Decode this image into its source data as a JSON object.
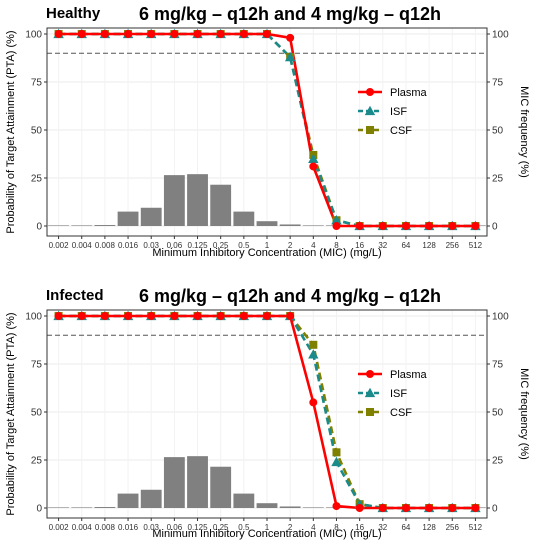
{
  "chart_data": [
    {
      "type": "line",
      "panel_label": "Healthy",
      "title": "6 mg/kg – q12h and 4 mg/kg – q12h",
      "xlabel": "Minimum Inhibitory Concentration (MIC) (mg/L)",
      "ylabel": "Probability of Target Attainment (PTA) (%)",
      "y2label": "MIC frequency (%)",
      "categories": [
        "0.002",
        "0.004",
        "0.008",
        "0.016",
        "0.03",
        "0.06",
        "0.125",
        "0.25",
        "0.5",
        "1",
        "2",
        "4",
        "8",
        "16",
        "32",
        "64",
        "128",
        "256",
        "512"
      ],
      "ylim": [
        0,
        100
      ],
      "yticks": [
        "0",
        "25",
        "50",
        "75",
        "100"
      ],
      "target_line": 90,
      "legend_position": "right",
      "grid": true,
      "bars": {
        "name": "MIC frequency",
        "color": "#808080",
        "values": [
          0.2,
          0.3,
          0.5,
          7.5,
          9.5,
          26.5,
          27,
          21.5,
          7.5,
          2.5,
          0.8,
          0.2,
          0.1,
          0,
          0,
          0,
          0,
          0,
          0
        ]
      },
      "series": [
        {
          "name": "Plasma",
          "color": "#ff0000",
          "marker": "circle",
          "dash": "solid",
          "values": [
            100,
            100,
            100,
            100,
            100,
            100,
            100,
            100,
            100,
            100,
            98,
            31,
            0,
            0,
            0,
            0,
            0,
            0,
            0
          ]
        },
        {
          "name": "ISF",
          "color": "#1a8a8a",
          "marker": "triangle",
          "dash": "dashed",
          "values": [
            100,
            100,
            100,
            100,
            100,
            100,
            100,
            100,
            100,
            100,
            88,
            35,
            3,
            0,
            0,
            0,
            0,
            0,
            0
          ]
        },
        {
          "name": "CSF",
          "color": "#808000",
          "marker": "square",
          "dash": "dashed",
          "values": [
            100,
            100,
            100,
            100,
            100,
            100,
            100,
            100,
            100,
            100,
            88,
            37,
            3,
            0,
            0,
            0,
            0,
            0,
            0
          ]
        }
      ]
    },
    {
      "type": "line",
      "panel_label": "Infected",
      "title": "6 mg/kg – q12h and 4 mg/kg – q12h",
      "xlabel": "Minimum Inhibitory Concentration (MIC) (mg/L)",
      "ylabel": "Probability of Target Attainment (PTA) (%)",
      "y2label": "MIC frequency (%)",
      "categories": [
        "0.002",
        "0.004",
        "0.008",
        "0.016",
        "0.03",
        "0.06",
        "0.125",
        "0.25",
        "0.5",
        "1",
        "2",
        "4",
        "8",
        "16",
        "32",
        "64",
        "128",
        "256",
        "512"
      ],
      "ylim": [
        0,
        100
      ],
      "yticks": [
        "0",
        "25",
        "50",
        "75",
        "100"
      ],
      "target_line": 90,
      "legend_position": "right",
      "grid": true,
      "bars": {
        "name": "MIC frequency",
        "color": "#808080",
        "values": [
          0.2,
          0.3,
          0.5,
          7.5,
          9.5,
          26.5,
          27,
          21.5,
          7.5,
          2.5,
          0.8,
          0.2,
          0.1,
          0,
          0,
          0,
          0,
          0,
          0
        ]
      },
      "series": [
        {
          "name": "Plasma",
          "color": "#ff0000",
          "marker": "circle",
          "dash": "solid",
          "values": [
            100,
            100,
            100,
            100,
            100,
            100,
            100,
            100,
            100,
            100,
            100,
            55,
            1,
            0,
            0,
            0,
            0,
            0,
            0
          ]
        },
        {
          "name": "ISF",
          "color": "#1a8a8a",
          "marker": "triangle",
          "dash": "dashed",
          "values": [
            100,
            100,
            100,
            100,
            100,
            100,
            100,
            100,
            100,
            100,
            100,
            80,
            24,
            2,
            0,
            0,
            0,
            0,
            0
          ]
        },
        {
          "name": "CSF",
          "color": "#808000",
          "marker": "square",
          "dash": "dashed",
          "values": [
            100,
            100,
            100,
            100,
            100,
            100,
            100,
            100,
            100,
            100,
            100,
            85,
            29,
            2,
            0,
            0,
            0,
            0,
            0
          ]
        }
      ]
    }
  ]
}
